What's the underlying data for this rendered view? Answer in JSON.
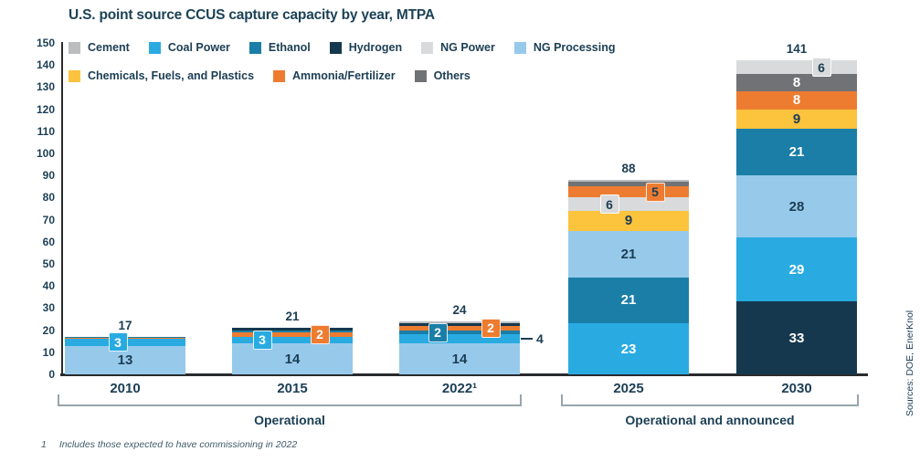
{
  "chart_data": {
    "type": "bar",
    "stacked": true,
    "title": "U.S. point source CCUS capture capacity by year, MTPA",
    "xlabel": "",
    "ylabel": "MTPA",
    "ylim": [
      0,
      150
    ],
    "ytick_step": 10,
    "grid": false,
    "legend_position": "top-left, two rows",
    "series": [
      {
        "name": "Cement",
        "color": "#bcbdbf",
        "textured": true,
        "legend_row": 0
      },
      {
        "name": "Coal Power",
        "color": "#29abe2",
        "textured": false,
        "legend_row": 0
      },
      {
        "name": "Ethanol",
        "color": "#1a7ea7",
        "textured": false,
        "legend_row": 0
      },
      {
        "name": "Hydrogen",
        "color": "#16384e",
        "textured": false,
        "legend_row": 0
      },
      {
        "name": "NG Power",
        "color": "#d9dadb",
        "textured": true,
        "legend_row": 0
      },
      {
        "name": "NG Processing",
        "color": "#97c9eb",
        "textured": true,
        "legend_row": 0
      },
      {
        "name": "Chemicals, Fuels, and Plastics",
        "color": "#fcc33d",
        "textured": false,
        "legend_row": 1
      },
      {
        "name": "Ammonia/Fertilizer",
        "color": "#ed7c31",
        "textured": false,
        "legend_row": 1
      },
      {
        "name": "Others",
        "color": "#717275",
        "textured": true,
        "legend_row": 1
      }
    ],
    "categories": [
      "2010",
      "2015",
      "2022¹",
      "2025",
      "2030"
    ],
    "bars": [
      {
        "category": "2010",
        "total_label": "17",
        "segments": [
          {
            "series": "NG Processing",
            "value": 13,
            "label": "13",
            "label_type": "inside",
            "label_color": "dark"
          },
          {
            "series": "Coal Power",
            "value": 3,
            "label": "3",
            "label_type": "callout",
            "label_color": "light",
            "offset_x": -8
          },
          {
            "series": "Ammonia/Fertilizer",
            "value": 0.5,
            "label": "",
            "label_type": "none"
          },
          {
            "series": "Ethanol",
            "value": 0.5,
            "label": "",
            "label_type": "none"
          }
        ]
      },
      {
        "category": "2015",
        "total_label": "21",
        "segments": [
          {
            "series": "NG Processing",
            "value": 14,
            "label": "14",
            "label_type": "inside",
            "label_color": "dark"
          },
          {
            "series": "Coal Power",
            "value": 3,
            "label": "3",
            "label_type": "callout",
            "label_color": "light",
            "offset_x": -33
          },
          {
            "series": "Ammonia/Fertilizer",
            "value": 2,
            "label": "2",
            "label_type": "callout",
            "label_color": "light",
            "offset_x": 30
          },
          {
            "series": "Ethanol",
            "value": 1,
            "label": "",
            "label_type": "none"
          },
          {
            "series": "Hydrogen",
            "value": 1,
            "label": "",
            "label_type": "none"
          }
        ]
      },
      {
        "category": "2022¹",
        "total_label": "24",
        "segments": [
          {
            "series": "NG Processing",
            "value": 14,
            "label": "14",
            "label_type": "inside",
            "label_color": "dark"
          },
          {
            "series": "Coal Power",
            "value": 4,
            "label": "4",
            "label_type": "leader",
            "label_color": "dark"
          },
          {
            "series": "Ethanol",
            "value": 2,
            "label": "2",
            "label_type": "callout",
            "label_color": "light",
            "offset_x": -24
          },
          {
            "series": "Ammonia/Fertilizer",
            "value": 2,
            "label": "2",
            "label_type": "callout",
            "label_color": "light",
            "offset_x": 34
          },
          {
            "series": "Hydrogen",
            "value": 1,
            "label": "",
            "label_type": "none"
          },
          {
            "series": "Cement",
            "value": 1,
            "label": "",
            "label_type": "none"
          }
        ]
      },
      {
        "category": "2025",
        "total_label": "88",
        "segments": [
          {
            "series": "Coal Power",
            "value": 23,
            "label": "23",
            "label_type": "inside",
            "label_color": "light"
          },
          {
            "series": "Ethanol",
            "value": 21,
            "label": "21",
            "label_type": "inside",
            "label_color": "light"
          },
          {
            "series": "NG Processing",
            "value": 21,
            "label": "21",
            "label_type": "inside",
            "label_color": "dark"
          },
          {
            "series": "Chemicals, Fuels, and Plastics",
            "value": 9,
            "label": "9",
            "label_type": "inside",
            "label_color": "dark"
          },
          {
            "series": "NG Power",
            "value": 6,
            "label": "6",
            "label_type": "callout",
            "label_color": "dark",
            "offset_x": -21
          },
          {
            "series": "Ammonia/Fertilizer",
            "value": 5,
            "label": "5",
            "label_type": "callout",
            "label_color": "dark",
            "offset_x": 29
          },
          {
            "series": "Others",
            "value": 2,
            "label": "",
            "label_type": "none"
          },
          {
            "series": "Cement",
            "value": 1,
            "label": "",
            "label_type": "none"
          }
        ]
      },
      {
        "category": "2030",
        "total_label": "141",
        "segments": [
          {
            "series": "Hydrogen",
            "value": 33,
            "label": "33",
            "label_type": "inside",
            "label_color": "light"
          },
          {
            "series": "Coal Power",
            "value": 29,
            "label": "29",
            "label_type": "inside",
            "label_color": "light"
          },
          {
            "series": "NG Processing",
            "value": 28,
            "label": "28",
            "label_type": "inside",
            "label_color": "dark"
          },
          {
            "series": "Ethanol",
            "value": 21,
            "label": "21",
            "label_type": "inside",
            "label_color": "light"
          },
          {
            "series": "Chemicals, Fuels, and Plastics",
            "value": 9,
            "label": "9",
            "label_type": "inside",
            "label_color": "dark"
          },
          {
            "series": "Ammonia/Fertilizer",
            "value": 8,
            "label": "8",
            "label_type": "inside",
            "label_color": "light"
          },
          {
            "series": "Others",
            "value": 8,
            "label": "8",
            "label_type": "inside",
            "label_color": "light"
          },
          {
            "series": "NG Power",
            "value": 6,
            "label": "6",
            "label_type": "callout",
            "label_color": "dark",
            "offset_x": 27
          }
        ]
      }
    ],
    "groups": [
      {
        "label": "Operational",
        "from": 0,
        "to": 2
      },
      {
        "label": "Operational and announced",
        "from": 3,
        "to": 4
      }
    ]
  },
  "footnote": {
    "marker": "1",
    "text": "Includes those expected to have commissioning in 2022"
  },
  "sources": "Sources: DOE, EnerKnol",
  "colors": {
    "text_navy": "#1b3e54",
    "title_navy": "#1c4257",
    "axis": "#2a2b2d",
    "bracket": "#98a4ab",
    "background": "#ffffff"
  }
}
